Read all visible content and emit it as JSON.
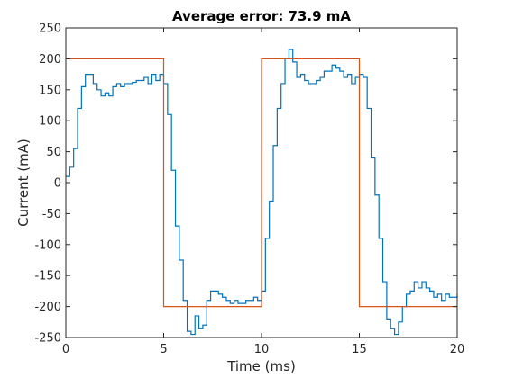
{
  "chart_data": {
    "type": "line",
    "title": "Average error:  73.9 mA",
    "xlabel": "Time (ms)",
    "ylabel": "Current (mA)",
    "xlim": [
      0,
      20
    ],
    "ylim": [
      -250,
      250
    ],
    "xticks": [
      0,
      5,
      10,
      15,
      20
    ],
    "yticks": [
      -250,
      -200,
      -150,
      -100,
      -50,
      0,
      50,
      100,
      150,
      200,
      250
    ],
    "grid": false,
    "series": [
      {
        "color": "#0072BD",
        "stairs": true,
        "x": [
          0,
          0.2,
          0.4,
          0.6,
          0.8,
          1.0,
          1.2,
          1.4,
          1.6,
          1.8,
          2.0,
          2.2,
          2.4,
          2.6,
          2.8,
          3.0,
          3.2,
          3.4,
          3.6,
          3.8,
          4.0,
          4.2,
          4.4,
          4.6,
          4.8,
          5.0,
          5.2,
          5.4,
          5.6,
          5.8,
          6.0,
          6.2,
          6.4,
          6.6,
          6.8,
          7.0,
          7.2,
          7.4,
          7.6,
          7.8,
          8.0,
          8.2,
          8.4,
          8.6,
          8.8,
          9.0,
          9.2,
          9.4,
          9.6,
          9.8,
          10.0,
          10.2,
          10.4,
          10.6,
          10.8,
          11.0,
          11.2,
          11.4,
          11.6,
          11.8,
          12.0,
          12.2,
          12.4,
          12.6,
          12.8,
          13.0,
          13.2,
          13.4,
          13.6,
          13.8,
          14.0,
          14.2,
          14.4,
          14.6,
          14.8,
          15.0,
          15.2,
          15.4,
          15.6,
          15.8,
          16.0,
          16.2,
          16.4,
          16.6,
          16.8,
          17.0,
          17.2,
          17.4,
          17.6,
          17.8,
          18.0,
          18.2,
          18.4,
          18.6,
          18.8,
          19.0,
          19.2,
          19.4,
          19.6,
          19.8,
          20.0
        ],
        "y": [
          10,
          25,
          55,
          120,
          155,
          175,
          175,
          160,
          150,
          140,
          145,
          140,
          155,
          160,
          155,
          160,
          160,
          162,
          165,
          165,
          170,
          160,
          175,
          165,
          175,
          160,
          110,
          20,
          -70,
          -125,
          -190,
          -240,
          -245,
          -215,
          -235,
          -230,
          -190,
          -175,
          -175,
          -180,
          -185,
          -190,
          -195,
          -190,
          -195,
          -195,
          -190,
          -190,
          -185,
          -190,
          -175,
          -90,
          -30,
          60,
          120,
          160,
          200,
          215,
          195,
          170,
          175,
          165,
          160,
          160,
          165,
          170,
          180,
          180,
          190,
          185,
          180,
          170,
          175,
          160,
          170,
          175,
          170,
          120,
          40,
          -20,
          -90,
          -160,
          -220,
          -235,
          -245,
          -225,
          -200,
          -180,
          -175,
          -160,
          -170,
          -160,
          -170,
          -175,
          -185,
          -180,
          -190,
          -180,
          -185,
          -185,
          -180
        ]
      },
      {
        "color": "#D95319",
        "stairs": false,
        "x": [
          0,
          5,
          5,
          10,
          10,
          15,
          15,
          20
        ],
        "y": [
          200,
          200,
          -200,
          -200,
          200,
          200,
          -200,
          -200
        ]
      }
    ]
  }
}
